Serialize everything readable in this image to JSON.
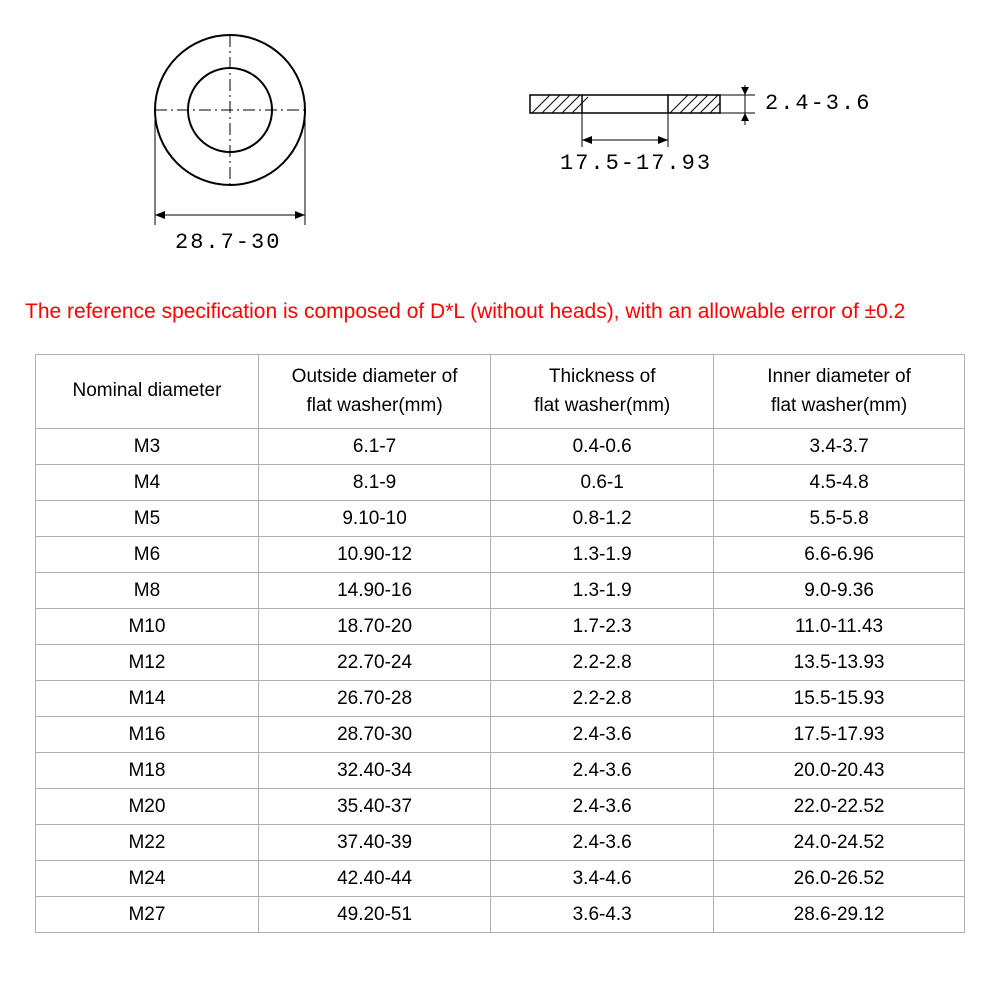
{
  "diagram": {
    "outer_diameter_label": "28.7-30",
    "inner_diameter_label": "17.5-17.93",
    "thickness_label": "2.4-3.6",
    "topview": {
      "outer_r": 75,
      "inner_r": 42,
      "stroke": "#000000",
      "fill": "#ffffff",
      "center_mark": "#000000"
    },
    "sideview": {
      "width": 190,
      "height": 18,
      "hatch_color": "#000000"
    }
  },
  "note": "The reference specification is composed of D*L (without heads), with an allowable error of ±0.2",
  "table": {
    "columns": [
      "Nominal diameter",
      "Outside diameter of flat washer(mm)",
      "Thickness of flat washer(mm)",
      "Inner diameter of flat washer(mm)"
    ],
    "rows": [
      [
        "M3",
        "6.1-7",
        "0.4-0.6",
        "3.4-3.7"
      ],
      [
        "M4",
        "8.1-9",
        "0.6-1",
        "4.5-4.8"
      ],
      [
        "M5",
        "9.10-10",
        "0.8-1.2",
        "5.5-5.8"
      ],
      [
        "M6",
        "10.90-12",
        "1.3-1.9",
        "6.6-6.96"
      ],
      [
        "M8",
        "14.90-16",
        "1.3-1.9",
        "9.0-9.36"
      ],
      [
        "M10",
        "18.70-20",
        "1.7-2.3",
        "11.0-11.43"
      ],
      [
        "M12",
        "22.70-24",
        "2.2-2.8",
        "13.5-13.93"
      ],
      [
        "M14",
        "26.70-28",
        "2.2-2.8",
        "15.5-15.93"
      ],
      [
        "M16",
        "28.70-30",
        "2.4-3.6",
        "17.5-17.93"
      ],
      [
        "M18",
        "32.40-34",
        "2.4-3.6",
        "20.0-20.43"
      ],
      [
        "M20",
        "35.40-37",
        "2.4-3.6",
        "22.0-22.52"
      ],
      [
        "M22",
        "37.40-39",
        "2.4-3.6",
        "24.0-24.52"
      ],
      [
        "M24",
        "42.40-44",
        "3.4-4.6",
        "26.0-26.52"
      ],
      [
        "M27",
        "49.20-51",
        "3.6-4.3",
        "28.6-29.12"
      ]
    ],
    "header_bg": "#ffffff",
    "border_color": "#b0b0b0",
    "text_color": "#000000",
    "font_size": 19
  },
  "colors": {
    "note_text": "#ff0000",
    "background": "#ffffff"
  }
}
